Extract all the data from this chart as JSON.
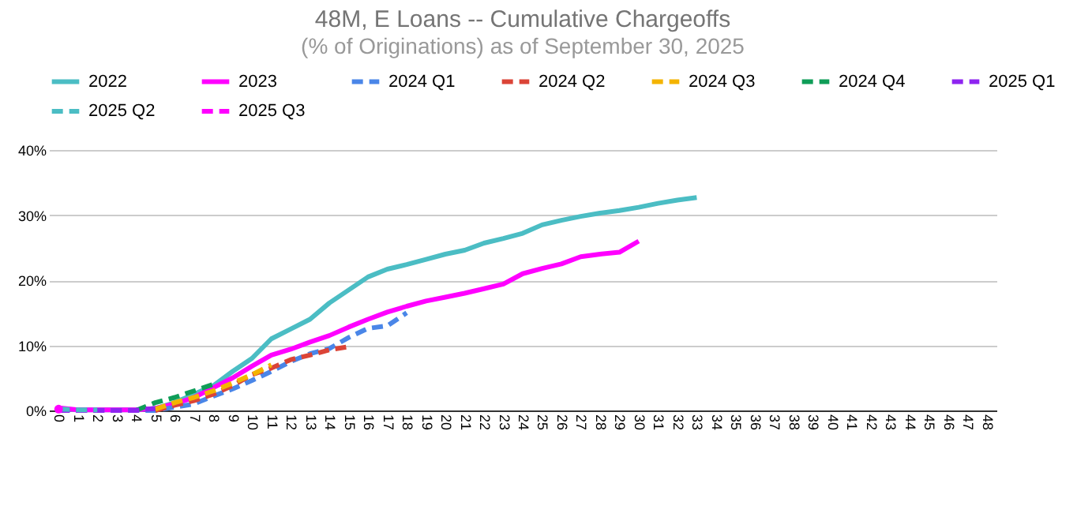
{
  "chart_data": {
    "type": "line",
    "title": "48M, E Loans -- Cumulative Chargeoffs",
    "subtitle": "(% of Originations) as of September 30, 2025",
    "categories": [
      "0",
      "1",
      "2",
      "3",
      "4",
      "5",
      "6",
      "7",
      "8",
      "9",
      "10",
      "11",
      "12",
      "13",
      "14",
      "15",
      "16",
      "17",
      "18",
      "19",
      "20",
      "21",
      "22",
      "23",
      "24",
      "25",
      "26",
      "27",
      "28",
      "29",
      "30",
      "31",
      "32",
      "33",
      "34",
      "35",
      "36",
      "37",
      "38",
      "39",
      "40",
      "41",
      "42",
      "43",
      "44",
      "45",
      "46",
      "47",
      "48"
    ],
    "series": [
      {
        "name": "2022",
        "color": "#4bbdc4",
        "line_style": "solid",
        "values": [
          0.2,
          0.1,
          0.1,
          0.1,
          0.1,
          0.3,
          1.2,
          2.5,
          3.8,
          6,
          8,
          11,
          12.5,
          14,
          16.5,
          18.5,
          20.5,
          21.7,
          22.4,
          23.2,
          24,
          24.6,
          25.7,
          26.4,
          27.2,
          28.5,
          29.2,
          29.8,
          30.3,
          30.7,
          31.2,
          31.8,
          32.3,
          32.7,
          null,
          null,
          null,
          null,
          null,
          null,
          null,
          null,
          null,
          null,
          null,
          null,
          null,
          null,
          null
        ]
      },
      {
        "name": "2023",
        "color": "#ff00ff",
        "line_style": "solid",
        "values": [
          0.4,
          0.1,
          0.1,
          0.1,
          0.1,
          0.3,
          1,
          2,
          3.5,
          5,
          6.8,
          8.5,
          9.4,
          10.5,
          11.5,
          12.8,
          14,
          15.1,
          16,
          16.8,
          17.4,
          18,
          18.7,
          19.4,
          21,
          21.8,
          22.5,
          23.6,
          24,
          24.3,
          26,
          null,
          null,
          null,
          null,
          null,
          null,
          null,
          null,
          null,
          null,
          null,
          null,
          null,
          null,
          null,
          null,
          null,
          null
        ]
      },
      {
        "name": "2024 Q1",
        "color": "#4a86e8",
        "line_style": "dashed",
        "values": [
          0,
          0,
          0,
          0,
          0,
          0,
          0.5,
          1,
          2.2,
          3.3,
          4.6,
          6,
          7.5,
          8.7,
          9.5,
          11.2,
          12.6,
          13,
          15,
          null,
          null,
          null,
          null,
          null,
          null,
          null,
          null,
          null,
          null,
          null,
          null,
          null,
          null,
          null,
          null,
          null,
          null,
          null,
          null,
          null,
          null,
          null,
          null,
          null,
          null,
          null,
          null,
          null,
          null
        ]
      },
      {
        "name": "2024 Q2",
        "color": "#db4437",
        "line_style": "dashed",
        "values": [
          null,
          null,
          null,
          null,
          null,
          0,
          0.8,
          1.5,
          2.5,
          3.8,
          5.5,
          6.5,
          7.8,
          8.5,
          9.3,
          9.8,
          null,
          null,
          null,
          null,
          null,
          null,
          null,
          null,
          null,
          null,
          null,
          null,
          null,
          null,
          null,
          null,
          null,
          null,
          null,
          null,
          null,
          null,
          null,
          null,
          null,
          null,
          null,
          null,
          null,
          null,
          null,
          null,
          null
        ]
      },
      {
        "name": "2024 Q3",
        "color": "#f4b400",
        "line_style": "dashed",
        "values": [
          null,
          null,
          null,
          null,
          null,
          0.2,
          1.2,
          2,
          3,
          4.2,
          5.5,
          7,
          null,
          null,
          null,
          null,
          null,
          null,
          null,
          null,
          null,
          null,
          null,
          null,
          null,
          null,
          null,
          null,
          null,
          null,
          null,
          null,
          null,
          null,
          null,
          null,
          null,
          null,
          null,
          null,
          null,
          null,
          null,
          null,
          null,
          null,
          null,
          null,
          null
        ]
      },
      {
        "name": "2024 Q4",
        "color": "#0f9d58",
        "line_style": "dashed",
        "values": [
          null,
          null,
          null,
          null,
          0,
          1.2,
          2,
          3,
          4,
          null,
          null,
          null,
          null,
          null,
          null,
          null,
          null,
          null,
          null,
          null,
          null,
          null,
          null,
          null,
          null,
          null,
          null,
          null,
          null,
          null,
          null,
          null,
          null,
          null,
          null,
          null,
          null,
          null,
          null,
          null,
          null,
          null,
          null,
          null,
          null,
          null,
          null,
          null,
          null
        ]
      },
      {
        "name": "2025 Q1",
        "color": "#8e24f0",
        "line_style": "dashed",
        "values": [
          0,
          0,
          0,
          0,
          0,
          0.3,
          null,
          null,
          null,
          null,
          null,
          null,
          null,
          null,
          null,
          null,
          null,
          null,
          null,
          null,
          null,
          null,
          null,
          null,
          null,
          null,
          null,
          null,
          null,
          null,
          null,
          null,
          null,
          null,
          null,
          null,
          null,
          null,
          null,
          null,
          null,
          null,
          null,
          null,
          null,
          null,
          null,
          null,
          null
        ]
      },
      {
        "name": "2025 Q2",
        "color": "#4bbdc4",
        "line_style": "dashed",
        "values": [
          0.2,
          0.1,
          0.1,
          null,
          null,
          null,
          null,
          null,
          null,
          null,
          null,
          null,
          null,
          null,
          null,
          null,
          null,
          null,
          null,
          null,
          null,
          null,
          null,
          null,
          null,
          null,
          null,
          null,
          null,
          null,
          null,
          null,
          null,
          null,
          null,
          null,
          null,
          null,
          null,
          null,
          null,
          null,
          null,
          null,
          null,
          null,
          null,
          null,
          null
        ]
      },
      {
        "name": "2025 Q3",
        "color": "#ff00ff",
        "line_style": "dashed",
        "marker": "circle",
        "values": [
          0.2,
          null,
          null,
          null,
          null,
          null,
          null,
          null,
          null,
          null,
          null,
          null,
          null,
          null,
          null,
          null,
          null,
          null,
          null,
          null,
          null,
          null,
          null,
          null,
          null,
          null,
          null,
          null,
          null,
          null,
          null,
          null,
          null,
          null,
          null,
          null,
          null,
          null,
          null,
          null,
          null,
          null,
          null,
          null,
          null,
          null,
          null,
          null,
          null
        ]
      }
    ],
    "ylim": [
      0,
      40
    ],
    "yticks": [
      {
        "value": 0,
        "label": "0%"
      },
      {
        "value": 10,
        "label": "10%"
      },
      {
        "value": 20,
        "label": "20%"
      },
      {
        "value": 30,
        "label": "30%"
      },
      {
        "value": 40,
        "label": "40%"
      }
    ],
    "grid": "y",
    "legend": "top",
    "marker": "none"
  }
}
